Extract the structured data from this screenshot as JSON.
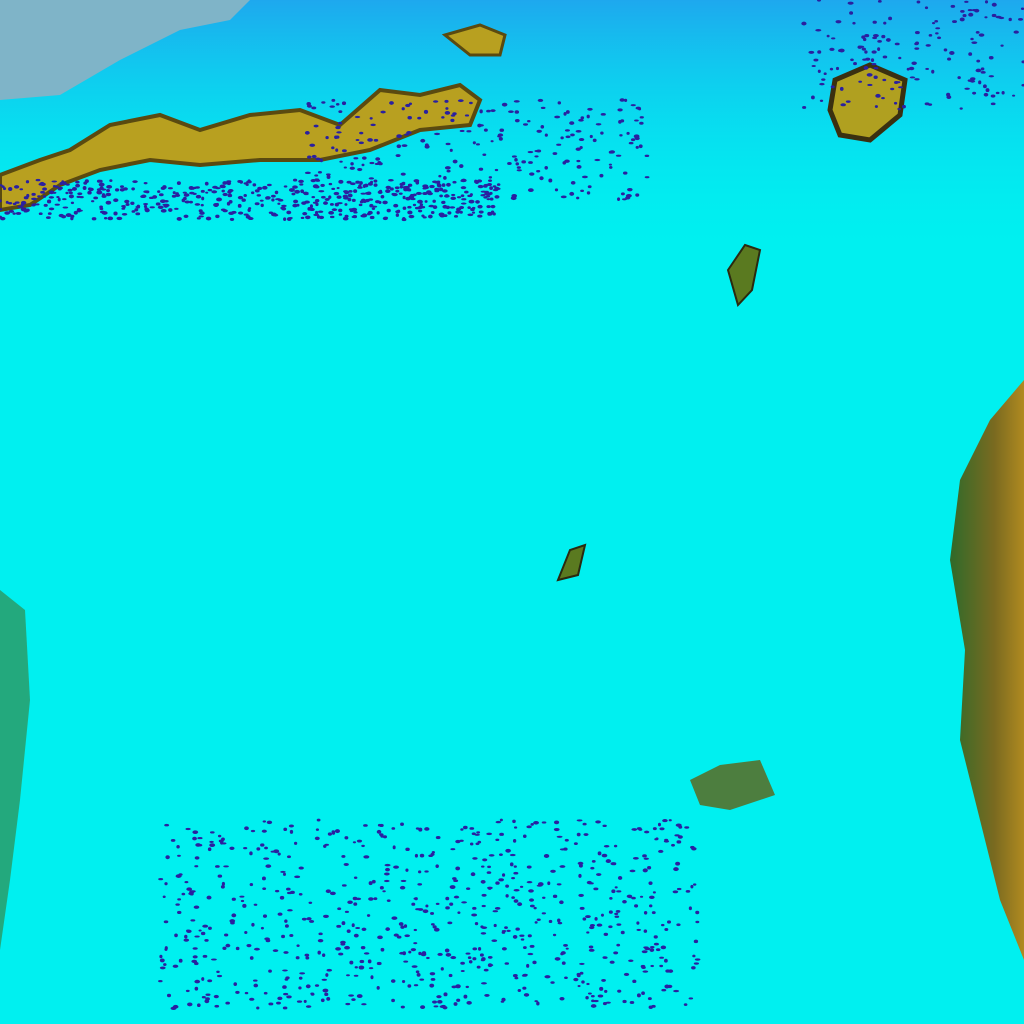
{
  "image": {
    "kind": "false-color satellite imagery",
    "colors": {
      "ice": "#00f2f2",
      "ice_light": "#40ffff",
      "water_blue": "#20b8f0",
      "haze_gray": "#7fb0c8",
      "land_olive": "#b8a020",
      "land_dark": "#5a4a10",
      "vegetation": "#3a7a30",
      "melt_ponds": "#2a20a0"
    }
  }
}
